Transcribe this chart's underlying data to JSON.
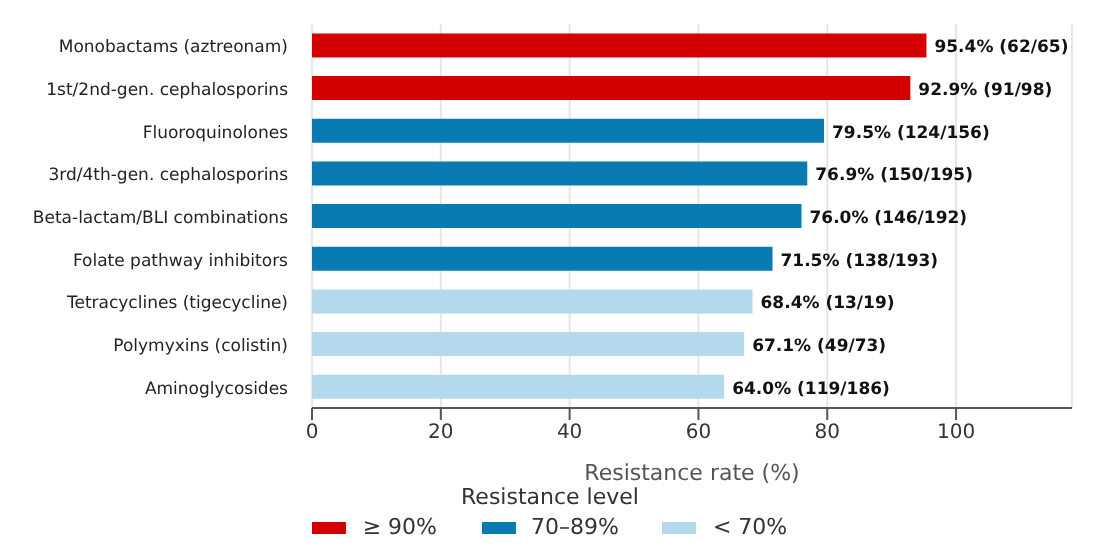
{
  "chart_data": {
    "type": "bar",
    "orientation": "horizontal",
    "stacked": true,
    "categories": [
      "Monobactams (aztreonam)",
      "1st/2nd-gen. cephalosporins",
      "Fluoroquinolones",
      "3rd/4th-gen. cephalosporins",
      "Beta-lactam/BLI combinations",
      "Folate pathway inhibitors",
      "Tetracyclines (tigecycline)",
      "Polymyxins (colistin)",
      "Aminoglycosides"
    ],
    "series": [
      {
        "name": "≥ 90%",
        "color": "#d40000",
        "values": [
          95.4,
          92.9,
          null,
          null,
          null,
          null,
          null,
          null,
          null
        ],
        "value_labels": [
          "95.4% (62/65)",
          "92.9% (91/98)",
          null,
          null,
          null,
          null,
          null,
          null,
          null
        ]
      },
      {
        "name": "70–89%",
        "color": "#0a7ab2",
        "values": [
          null,
          null,
          79.5,
          76.9,
          76.0,
          71.5,
          null,
          null,
          null
        ],
        "value_labels": [
          null,
          null,
          "79.5% (124/156)",
          "76.9% (150/195)",
          "76.0% (146/192)",
          "71.5% (138/193)",
          null,
          null,
          null
        ]
      },
      {
        "name": "< 70%",
        "color": "#b5d9ec",
        "values": [
          null,
          null,
          null,
          null,
          null,
          null,
          68.4,
          67.1,
          64.0
        ],
        "value_labels": [
          null,
          null,
          null,
          null,
          null,
          null,
          "68.4% (13/19)",
          "67.1% (49/73)",
          "64.0% (119/186)"
        ]
      }
    ],
    "xlabel": "Resistance rate (%)",
    "legend_title": "Resistance level",
    "legend": "bottom",
    "grid": "x",
    "xlim": [
      0,
      118
    ],
    "xticks": [
      0,
      20,
      40,
      60,
      80,
      100
    ]
  }
}
